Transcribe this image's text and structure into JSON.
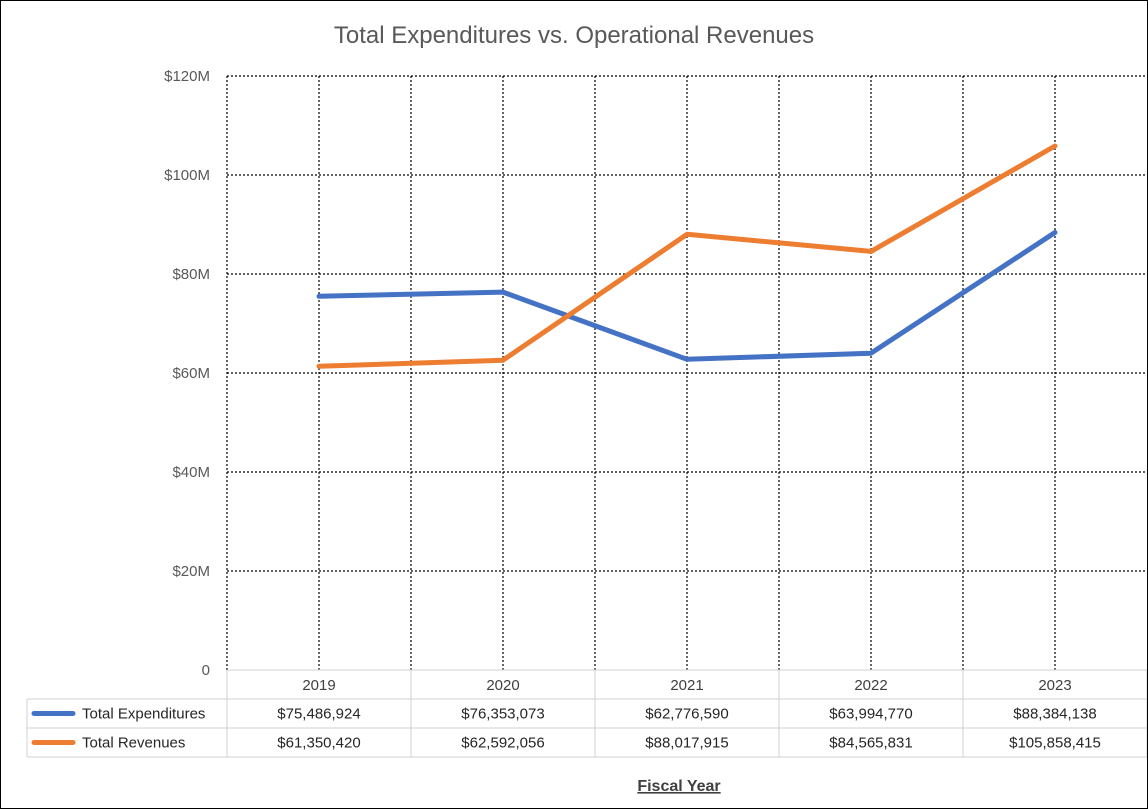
{
  "chart_data": {
    "type": "line",
    "title": "Total Expenditures vs. Operational Revenues",
    "xlabel": "Fiscal Year",
    "ylabel": "",
    "categories": [
      "2019",
      "2020",
      "2021",
      "2022",
      "2023"
    ],
    "ylim": [
      0,
      120000000
    ],
    "yticks": [
      0,
      20000000,
      40000000,
      60000000,
      80000000,
      100000000,
      120000000
    ],
    "ytick_labels": [
      "0",
      "$20M",
      "$40M",
      "$60M",
      "$80M",
      "$100M",
      "$120M"
    ],
    "grid": true,
    "legend": "data-table-bottom",
    "series": [
      {
        "name": "Total Expenditures",
        "color": "#4472C4",
        "values": [
          75486924,
          76353073,
          62776590,
          63994770,
          88384138
        ],
        "labels": [
          "$75,486,924",
          "$76,353,073",
          "$62,776,590",
          "$63,994,770",
          "$88,384,138"
        ]
      },
      {
        "name": "Total Revenues",
        "color": "#ED7D31",
        "values": [
          61350420,
          62592056,
          88017915,
          84565831,
          105858415
        ],
        "labels": [
          "$61,350,420",
          "$62,592,056",
          "$88,017,915",
          "$84,565,831",
          "$105,858,415"
        ]
      }
    ]
  }
}
